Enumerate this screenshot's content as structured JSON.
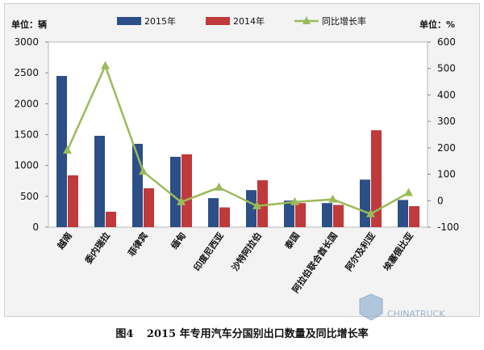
{
  "chart_data": {
    "type": "bar",
    "categories": [
      "越南",
      "委内瑞拉",
      "菲律宾",
      "缅甸",
      "印度尼西亚",
      "沙特阿拉伯",
      "泰国",
      "阿拉伯联合酋长国",
      "阿尔及利亚",
      "埃塞俄比亚"
    ],
    "series": [
      {
        "name": "2015年",
        "kind": "bar",
        "axis": "left",
        "color": "#2b4f86",
        "values": [
          2450,
          1480,
          1350,
          1140,
          470,
          600,
          430,
          390,
          770,
          440
        ]
      },
      {
        "name": "2014年",
        "kind": "bar",
        "axis": "left",
        "color": "#c0393b",
        "values": [
          840,
          250,
          630,
          1180,
          320,
          760,
          390,
          360,
          1570,
          340
        ]
      },
      {
        "name": "同比增长率",
        "kind": "line",
        "axis": "right",
        "color": "#9bbb59",
        "values": [
          190,
          510,
          110,
          -5,
          50,
          -20,
          -5,
          5,
          -50,
          30
        ]
      }
    ],
    "left_axis": {
      "unit_label": "单位：辆",
      "min": 0,
      "max": 3000,
      "ticks": [
        "0",
        "500",
        "1000",
        "1500",
        "2000",
        "2500",
        "3000"
      ]
    },
    "right_axis": {
      "unit_label": "单位：%",
      "min": -100,
      "max": 600,
      "ticks": [
        "-100",
        "0",
        "100",
        "200",
        "300",
        "400",
        "500",
        "600"
      ]
    },
    "legend_position": "top"
  },
  "caption": {
    "figure_number": "图4",
    "title": "2015 年专用汽车分国别出口数量及同比增长率"
  },
  "watermark": {
    "text": "CHINATRUCK"
  }
}
